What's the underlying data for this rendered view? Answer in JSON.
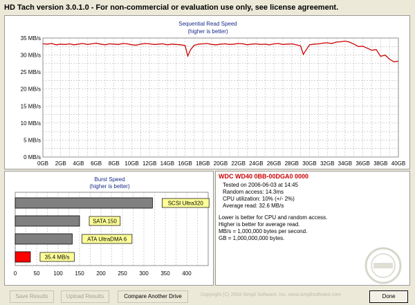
{
  "window": {
    "title": "HD Tach version 3.0.1.0  - For non-commercial or evaluation use only, see license agreement."
  },
  "read_chart": {
    "title": "Sequential Read Speed",
    "subtitle": "(higher is better)"
  },
  "burst_chart": {
    "title": "Burst Speed",
    "subtitle": "(higher is better)"
  },
  "info": {
    "drive_name": "WDC WD40 0BB-00DGA0 0000",
    "tested_on": "Tested on 2006-06-03 at 14:45",
    "random_access": "Random access: 14.3ms",
    "cpu_utilization": "CPU utilization: 10% (+/- 2%)",
    "average_read": "Average read: 32.6 MB/s",
    "note1": "Lower is better for CPU and random access.",
    "note2": "Higher is better for average read.",
    "note3": "MB/s = 1,000,000 bytes per second.",
    "note4": "GB = 1,000,000,000 bytes."
  },
  "buttons": {
    "save_results": "Save Results",
    "upload_results": "Upload Results",
    "compare": "Compare Another Drive",
    "done": "Done"
  },
  "footer": {
    "copyright": "Copyright (C) 2004 Simpli Software, Inc. www.simplisoftware.com"
  },
  "colors": {
    "line": "#cc0000",
    "grid": "#9a9a9a",
    "title_blue": "#1a2a88",
    "bar_gray": "#808080",
    "bar_red": "#ff0000",
    "label_bg": "#ffff99"
  },
  "chart_data": [
    {
      "type": "line",
      "title": "Sequential Read Speed",
      "subtitle": "(higher is better)",
      "xlabel": "",
      "ylabel": "",
      "xlim": [
        0,
        40
      ],
      "ylim": [
        0,
        35
      ],
      "x_ticks": [
        "0GB",
        "2GB",
        "4GB",
        "6GB",
        "8GB",
        "10GB",
        "12GB",
        "14GB",
        "16GB",
        "18GB",
        "20GB",
        "22GB",
        "24GB",
        "26GB",
        "28GB",
        "30GB",
        "32GB",
        "34GB",
        "36GB",
        "38GB",
        "40GB"
      ],
      "y_ticks": [
        "0 MB/s",
        "5 MB/s",
        "10 MB/s",
        "15 MB/s",
        "20 MB/s",
        "25 MB/s",
        "30 MB/s",
        "35 MB/s"
      ],
      "grid": true,
      "series": [
        {
          "color": "#cc0000",
          "x": [
            0,
            0.5,
            1,
            1.5,
            2,
            2.5,
            3,
            3.5,
            4,
            4.5,
            5,
            5.5,
            6,
            6.5,
            7,
            7.5,
            8,
            8.5,
            9,
            9.5,
            10,
            10.5,
            11,
            11.5,
            12,
            12.5,
            13,
            13.5,
            14,
            14.5,
            15,
            15.5,
            16,
            16.3,
            16.6,
            17,
            17.5,
            18,
            18.5,
            19,
            19.5,
            20,
            20.5,
            21,
            21.5,
            22,
            22.5,
            23,
            23.5,
            24,
            24.5,
            25,
            25.5,
            26,
            26.5,
            27,
            27.5,
            28,
            28.5,
            29,
            29.3,
            29.7,
            30,
            30.5,
            31,
            31.5,
            32,
            32.5,
            33,
            33.5,
            34,
            34.5,
            35,
            35.5,
            36,
            36.5,
            37,
            37.5,
            38,
            38.5,
            39,
            39.5,
            40
          ],
          "y": [
            33.3,
            33.2,
            33.4,
            33.0,
            33.2,
            33.1,
            33.3,
            33.0,
            33.2,
            33.4,
            33.1,
            33.3,
            33.5,
            33.2,
            33.0,
            33.3,
            33.2,
            33.1,
            33.4,
            33.3,
            33.0,
            32.9,
            33.2,
            33.4,
            33.3,
            33.1,
            33.2,
            33.3,
            33.0,
            33.2,
            33.1,
            33.0,
            32.8,
            29.7,
            31.5,
            32.8,
            33.2,
            33.3,
            33.4,
            33.1,
            33.0,
            33.2,
            33.3,
            33.1,
            33.2,
            33.4,
            33.3,
            33.0,
            33.2,
            33.3,
            33.1,
            33.2,
            33.0,
            33.3,
            33.4,
            33.1,
            33.2,
            33.3,
            33.0,
            32.7,
            30.2,
            31.8,
            33.0,
            33.2,
            33.3,
            33.5,
            33.6,
            33.4,
            33.8,
            33.9,
            34.1,
            33.8,
            33.2,
            32.5,
            32.6,
            32.0,
            31.4,
            31.6,
            29.6,
            30.0,
            28.8,
            28.0,
            28.2
          ]
        }
      ]
    },
    {
      "type": "bar",
      "orientation": "horizontal",
      "title": "Burst Speed",
      "subtitle": "(higher is better)",
      "xlim": [
        0,
        450
      ],
      "x_ticks": [
        "0",
        "50",
        "100",
        "150",
        "200",
        "250",
        "300",
        "350",
        "400"
      ],
      "grid": true,
      "categories": [
        "SCSI Ultra320",
        "SATA 150",
        "ATA UltraDMA 6",
        "35.4 MB/s"
      ],
      "values": [
        320,
        150,
        133,
        35.4
      ],
      "bar_colors": [
        "#808080",
        "#808080",
        "#808080",
        "#ff0000"
      ]
    }
  ]
}
